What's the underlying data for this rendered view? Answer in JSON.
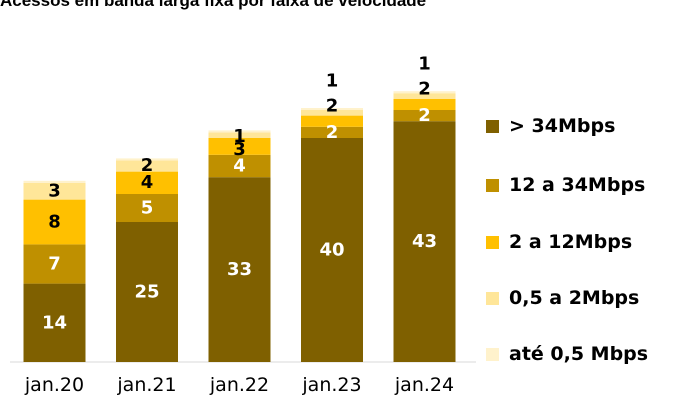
{
  "chart_data": {
    "type": "bar",
    "stacked": true,
    "title": "Acessos em banda larga fixa por faixa de velocidade",
    "categories": [
      "jan.20",
      "jan.21",
      "jan.22",
      "jan.23",
      "jan.24"
    ],
    "series": [
      {
        "name": "> 34Mbps",
        "color": "#7f6000",
        "values": [
          14,
          25,
          33,
          40,
          43
        ]
      },
      {
        "name": "12 a 34Mbps",
        "color": "#bf9000",
        "values": [
          7,
          5,
          4,
          2,
          2
        ]
      },
      {
        "name": "2 a 12Mbps",
        "color": "#ffc000",
        "values": [
          8,
          4,
          3,
          2,
          2
        ]
      },
      {
        "name": "0,5 a 2Mbps",
        "color": "#ffe699",
        "values": [
          3,
          2,
          1,
          1,
          1
        ]
      },
      {
        "name": "até 0,5 Mbps",
        "color": "#fff2cc",
        "values": [
          0,
          0,
          0,
          0,
          0
        ]
      }
    ],
    "legend_position": "right",
    "grid": false
  }
}
